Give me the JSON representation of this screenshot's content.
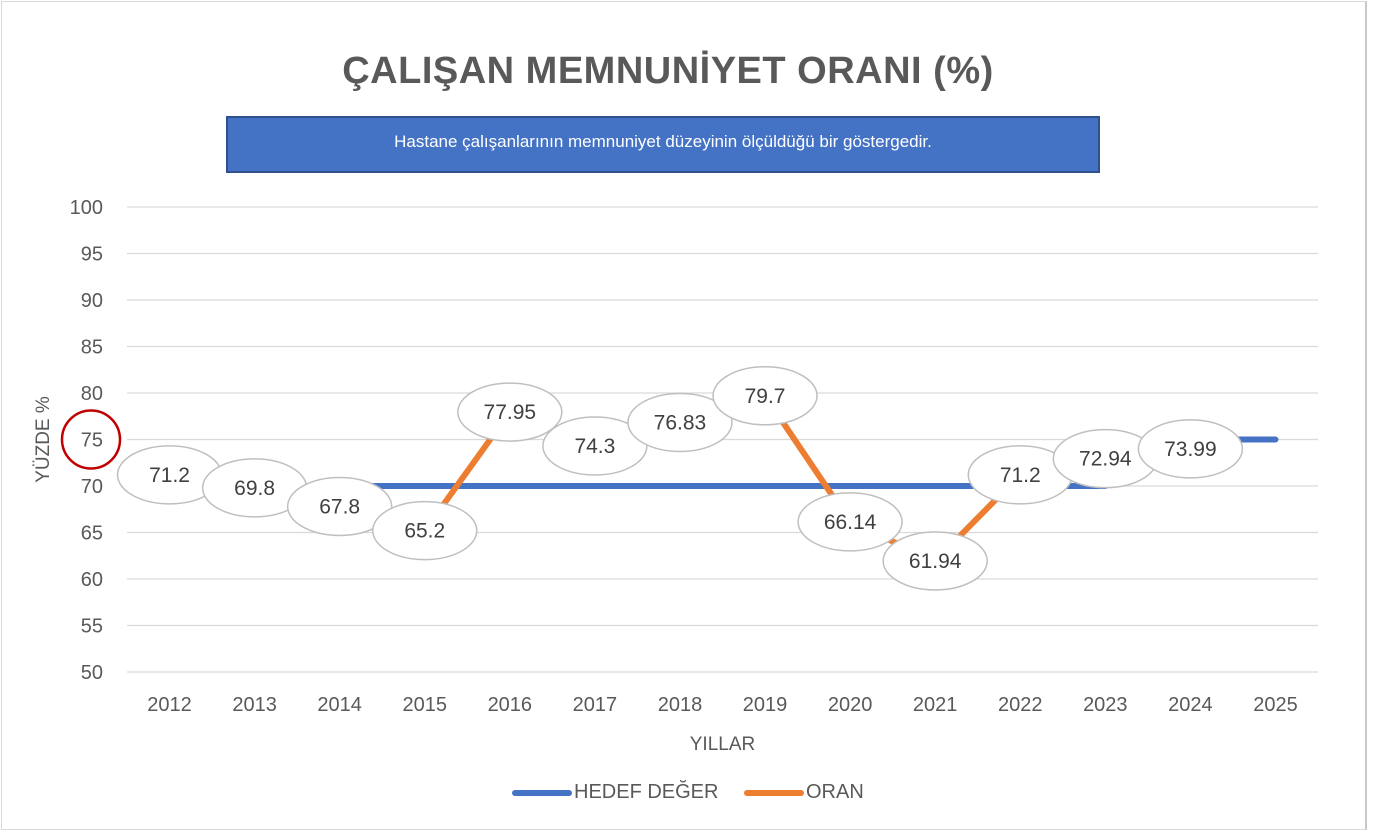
{
  "colors": {
    "hedef": "#4472c4",
    "oran": "#ed7d31",
    "grid": "#d9d9d9",
    "text": "#595959",
    "highlight_circle": "#c00000"
  },
  "chart_data": {
    "type": "line",
    "title": "ÇALIŞAN MEMNUNİYET ORANI (%)",
    "subtitle": "Hastane çalışanlarının memnuniyet düzeyinin ölçüldüğü bir göstergedir.",
    "xlabel": "YILLAR",
    "ylabel": "YÜZDE %",
    "ylim": [
      50,
      100
    ],
    "yticks": [
      "50",
      "55",
      "60",
      "65",
      "70",
      "75",
      "80",
      "85",
      "90",
      "95",
      "100"
    ],
    "categories": [
      "2012",
      "2013",
      "2014",
      "2015",
      "2016",
      "2017",
      "2018",
      "2019",
      "2020",
      "2021",
      "2022",
      "2023",
      "2024",
      "2025"
    ],
    "grid": true,
    "legend_position": "bottom",
    "highlighted_ytick": "75",
    "series": [
      {
        "name": "HEDEF DEĞER",
        "values": [
          70,
          70,
          70,
          70,
          70,
          70,
          70,
          70,
          70,
          70,
          70,
          70,
          75,
          75
        ]
      },
      {
        "name": "ORAN",
        "values": [
          71.2,
          69.8,
          67.8,
          65.2,
          77.95,
          74.3,
          76.83,
          79.7,
          66.14,
          61.94,
          71.2,
          72.94,
          73.99,
          null
        ],
        "data_labels": [
          "71.2",
          "69.8",
          "67.8",
          "65.2",
          "77.95",
          "74.3",
          "76.83",
          "79.7",
          "66.14",
          "61.94",
          "71.2",
          "72.94",
          "73.99"
        ]
      }
    ]
  }
}
